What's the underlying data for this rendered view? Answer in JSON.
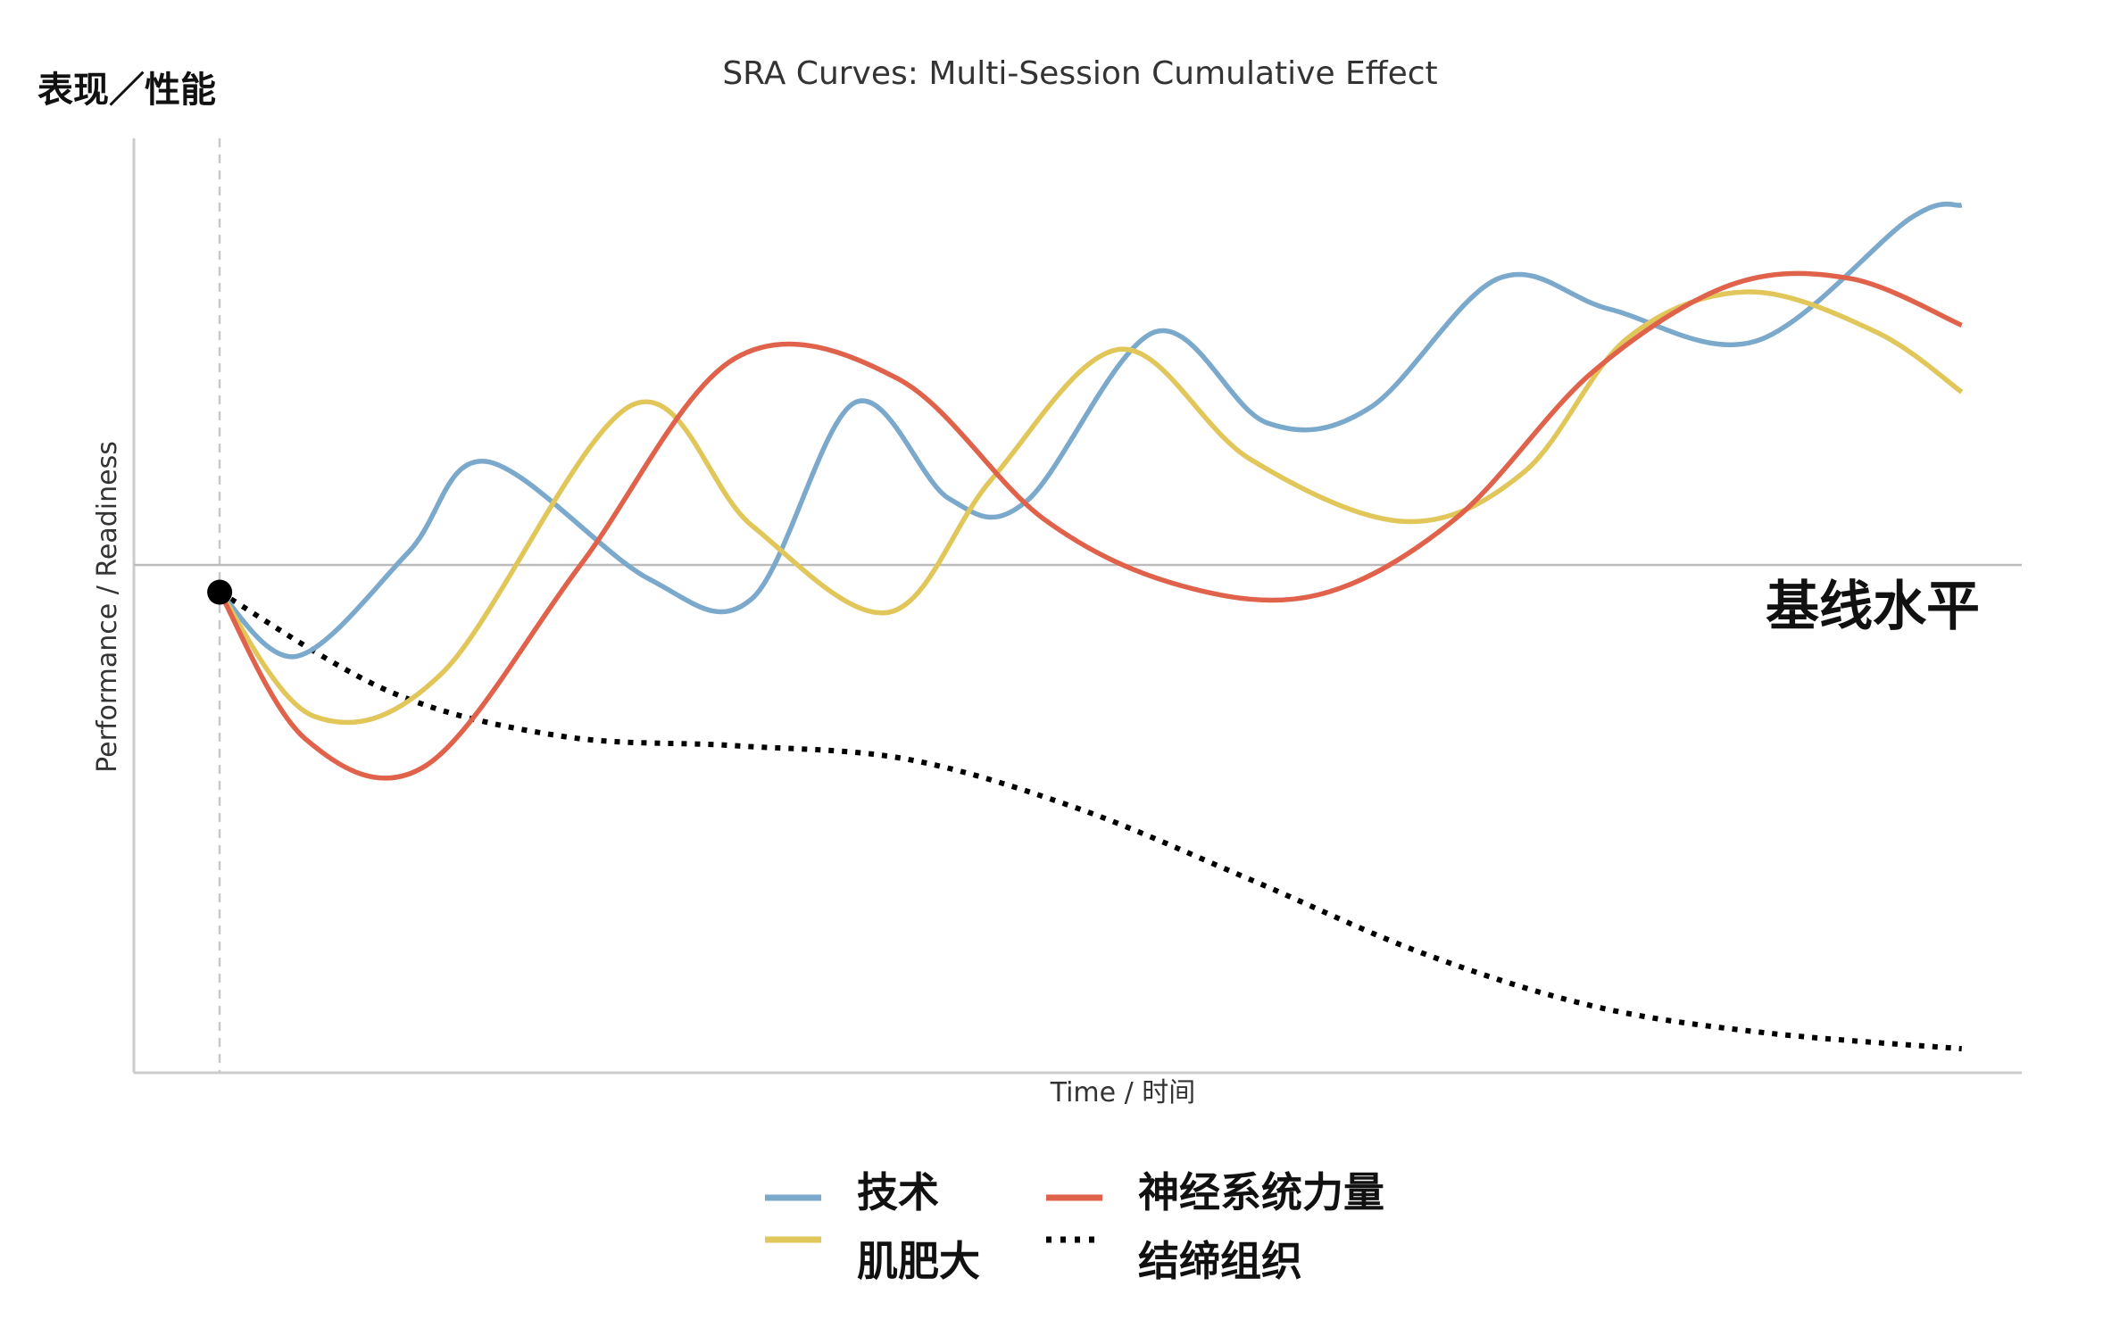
{
  "chart_data": {
    "type": "line",
    "title": "SRA Curves: Multi-Session Cumulative Effect",
    "ylabel_top": "表现／性能",
    "ylabel": "Performance / Readiness",
    "xlabel": "Time / 时间",
    "baseline_label": "基线水平",
    "grid": false,
    "legend_position": "bottom",
    "xlim": [
      -1,
      21
    ],
    "ylim": [
      -3.6,
      3.4
    ],
    "baseline": 0,
    "start_point": [
      0,
      0
    ],
    "colors": {
      "technique": "#7aa9cc",
      "hypertrophy": "#e1c65a",
      "neural": "#e0624b",
      "connective": "#000000",
      "axis": "#cccccc",
      "baseline": "#bbbbbb"
    },
    "series": [
      {
        "name": "技术",
        "color": "#7aa9cc",
        "style": "solid",
        "x": [
          0,
          0.9,
          2.2,
          3.1,
          5.0,
          6.2,
          7.4,
          8.5,
          9.4,
          10.9,
          12.2,
          13.4,
          14.9,
          16.2,
          17.9,
          19.7,
          20.3
        ],
        "y": [
          0,
          -0.48,
          0.3,
          0.98,
          0.1,
          -0.05,
          1.42,
          0.7,
          0.68,
          1.95,
          1.27,
          1.38,
          2.35,
          2.12,
          1.88,
          2.8,
          2.9
        ]
      },
      {
        "name": "肌肥大",
        "color": "#e1c65a",
        "style": "solid",
        "x": [
          0,
          1.1,
          2.6,
          4.8,
          6.2,
          7.8,
          9.0,
          10.5,
          12.0,
          13.8,
          15.2,
          16.4,
          17.8,
          19.3,
          20.3
        ],
        "y": [
          0,
          -0.93,
          -0.6,
          1.4,
          0.5,
          -0.15,
          0.85,
          1.82,
          1.0,
          0.53,
          0.9,
          1.9,
          2.25,
          1.95,
          1.5
        ]
      },
      {
        "name": "神经系统力量",
        "color": "#e0624b",
        "style": "solid",
        "x": [
          0,
          1.0,
          2.4,
          4.2,
          6.0,
          7.9,
          9.6,
          11.2,
          12.8,
          14.4,
          16.0,
          17.6,
          19.0,
          20.3
        ],
        "y": [
          0,
          -1.1,
          -1.3,
          0.2,
          1.75,
          1.6,
          0.55,
          0.05,
          -0.02,
          0.55,
          1.65,
          2.3,
          2.35,
          2.0
        ]
      },
      {
        "name": "结缔组织",
        "color": "#000000",
        "style": "dotted",
        "x": [
          0,
          2.0,
          4.0,
          6.0,
          8.0,
          10.0,
          12.0,
          14.0,
          16.0,
          18.0,
          20.3
        ],
        "y": [
          0,
          -0.75,
          -1.08,
          -1.15,
          -1.25,
          -1.62,
          -2.15,
          -2.7,
          -3.1,
          -3.3,
          -3.42
        ]
      }
    ]
  }
}
